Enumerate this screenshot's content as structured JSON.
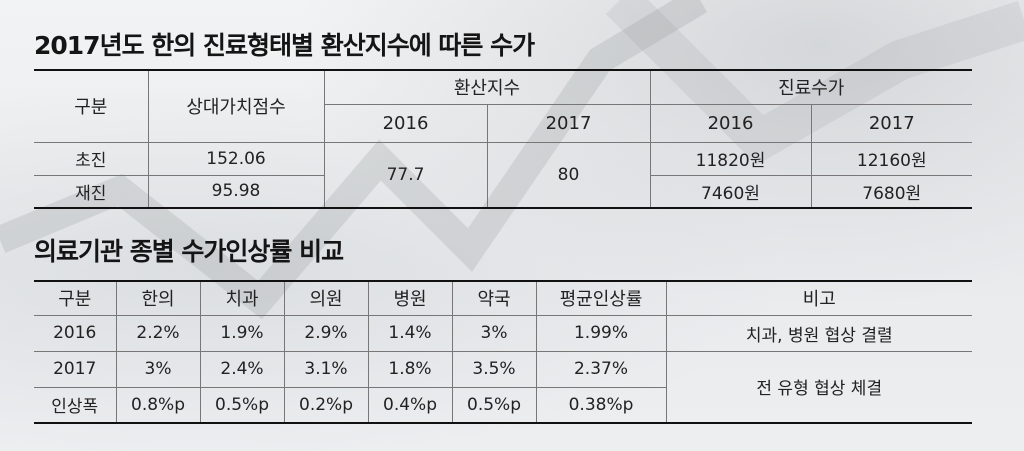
{
  "table1": {
    "title": "2017년도 한의 진료형태별 환산지수에 따른 수가",
    "headers": {
      "category": "구분",
      "relative_value": "상대가치점수",
      "conversion_index": "환산지수",
      "fee": "진료수가",
      "y2016": "2016",
      "y2017": "2017",
      "y2016b": "2016",
      "y2017b": "2017"
    },
    "rows": [
      {
        "label": "초진",
        "relative_value": "152.06",
        "fee_2016": "11820원",
        "fee_2017": "12160원"
      },
      {
        "label": "재진",
        "relative_value": "95.98",
        "fee_2016": "7460원",
        "fee_2017": "7680원"
      }
    ],
    "conversion_2016": "77.7",
    "conversion_2017": "80"
  },
  "table2": {
    "title": "의료기관 종별 수가인상률 비교",
    "headers": [
      "구분",
      "한의",
      "치과",
      "의원",
      "병원",
      "약국",
      "평균인상률",
      "비고"
    ],
    "rows": [
      [
        "2016",
        "2.2%",
        "1.9%",
        "2.9%",
        "1.4%",
        "3%",
        "1.99%"
      ],
      [
        "2017",
        "3%",
        "2.4%",
        "3.1%",
        "1.8%",
        "3.5%",
        "2.37%"
      ],
      [
        "인상폭",
        "0.8%p",
        "0.5%p",
        "0.2%p",
        "0.4%p",
        "0.5%p",
        "0.38%p"
      ]
    ],
    "notes": [
      "치과, 병원 협상 결렬",
      "전 유형 협상 체결"
    ]
  }
}
